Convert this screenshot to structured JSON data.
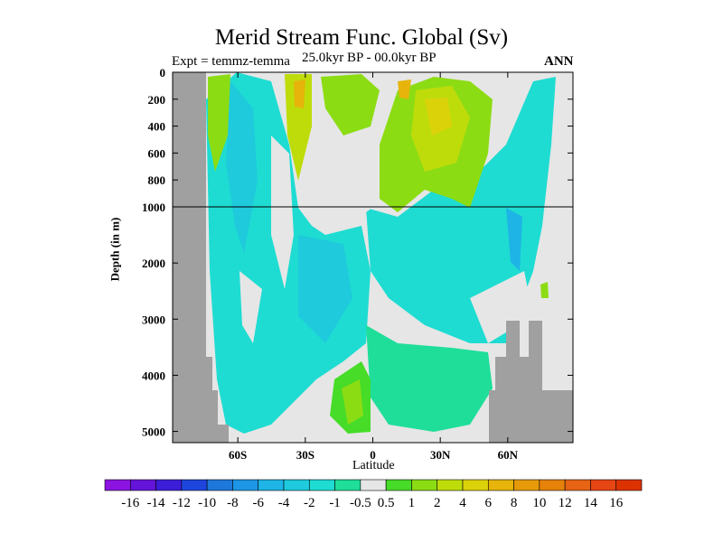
{
  "chart_data": {
    "type": "heatmap",
    "title": "Merid Stream Func. Global (Sv)",
    "subtitle_left": "Expt = temmz-temma",
    "subtitle_center": "25.0kyr BP - 00.0kyr BP",
    "subtitle_right": "ANN",
    "xlabel": "Latitude",
    "ylabel": "Depth (in m)",
    "xticks": [
      {
        "value": -60,
        "label": "60S"
      },
      {
        "value": -30,
        "label": "30S"
      },
      {
        "value": 0,
        "label": "0"
      },
      {
        "value": 30,
        "label": "30N"
      },
      {
        "value": 60,
        "label": "60N"
      }
    ],
    "yticks": [
      {
        "value": 0,
        "label": "0"
      },
      {
        "value": 200,
        "label": "200"
      },
      {
        "value": 400,
        "label": "400"
      },
      {
        "value": 600,
        "label": "600"
      },
      {
        "value": 800,
        "label": "800"
      },
      {
        "value": 1000,
        "label": "1000"
      },
      {
        "value": 2000,
        "label": "2000"
      },
      {
        "value": 3000,
        "label": "3000"
      },
      {
        "value": 4000,
        "label": "4000"
      },
      {
        "value": 5000,
        "label": "5000"
      }
    ],
    "xlim": [
      -89,
      89
    ],
    "ylim": [
      5200,
      0
    ],
    "y_axis_break": 1000,
    "colorbar": {
      "levels": [
        "-16",
        "-14",
        "-12",
        "-10",
        "-8",
        "-6",
        "-4",
        "-2",
        "-1",
        "-0.5",
        "0.5",
        "1",
        "2",
        "4",
        "6",
        "8",
        "10",
        "12",
        "14",
        "16"
      ],
      "colors": [
        "#8c14e0",
        "#6414d8",
        "#3c1ed8",
        "#1e46dc",
        "#1e78dc",
        "#1e96e6",
        "#1eb4e6",
        "#1ecadc",
        "#1edcd2",
        "#1ede9a",
        "#e6e6e6",
        "#46dc28",
        "#8cdc14",
        "#bedc0a",
        "#dcd20a",
        "#e6b40a",
        "#e69a0a",
        "#e6820a",
        "#e66414",
        "#e64614",
        "#dc3200"
      ]
    },
    "land_color": "#a0a0a0"
  }
}
